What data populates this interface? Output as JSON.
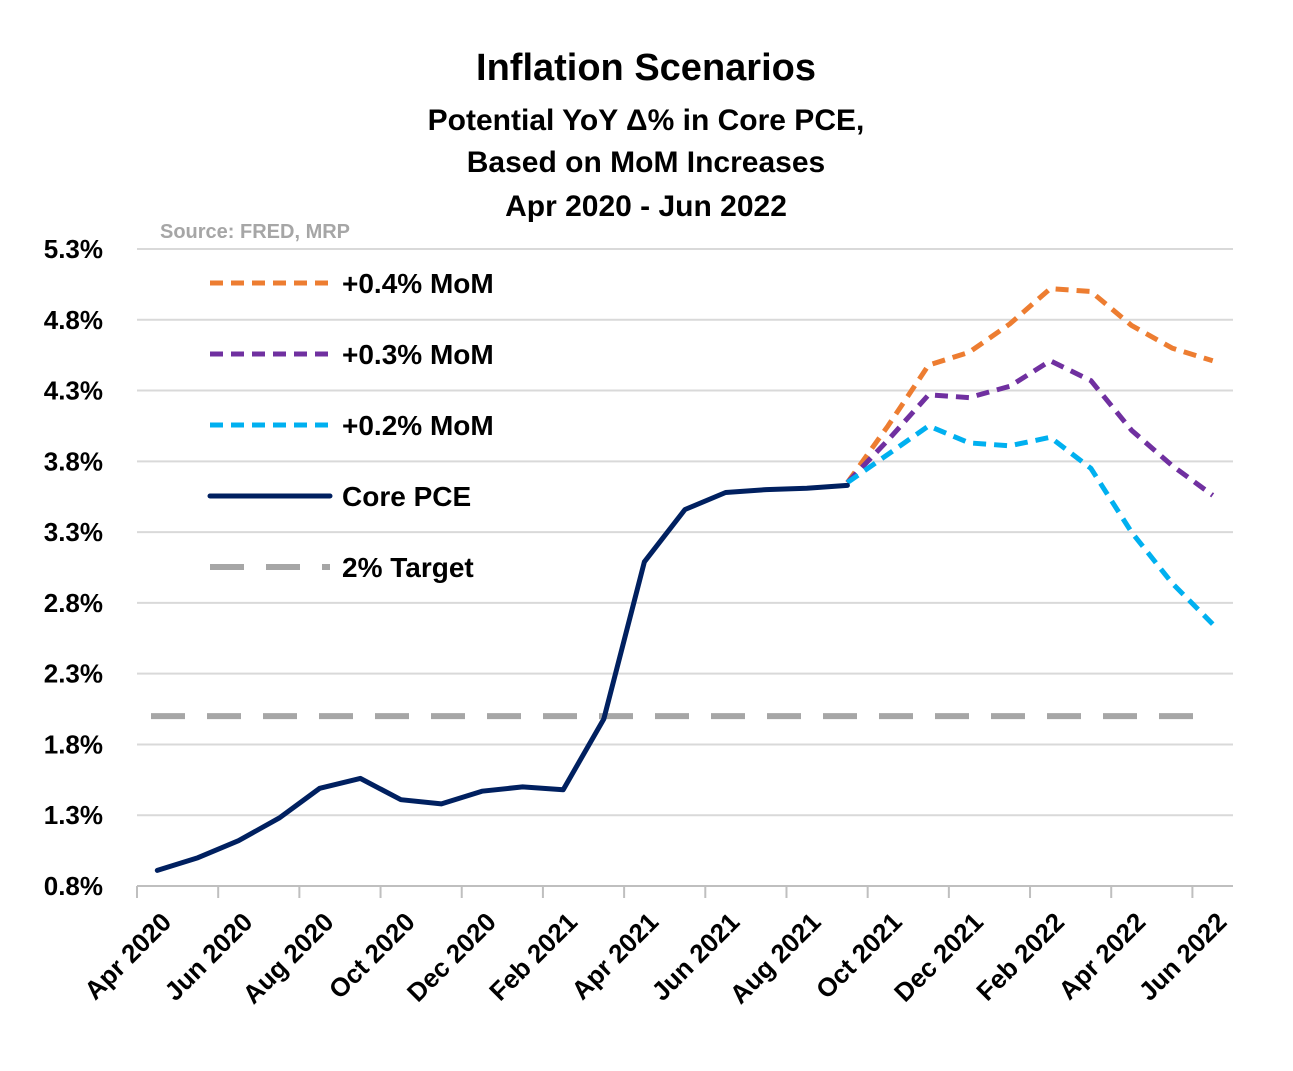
{
  "chart_data": {
    "type": "line",
    "title": "Inflation Scenarios",
    "subtitle_lines": [
      "Potential YoY Δ% in Core PCE,",
      "Based on MoM Increases",
      "Apr 2020 - Jun 2022"
    ],
    "source": "Source: FRED, MRP",
    "y_ticks": [
      "5.3%",
      "4.8%",
      "4.3%",
      "3.8%",
      "3.3%",
      "2.8%",
      "2.3%",
      "1.8%",
      "1.3%",
      "0.8%"
    ],
    "y_tick_values": [
      5.3,
      4.8,
      4.3,
      3.8,
      3.3,
      2.8,
      2.3,
      1.8,
      1.3,
      0.8
    ],
    "ylim": [
      0.8,
      5.3
    ],
    "grid": true,
    "legend_position": "top-left",
    "x_tick_labels": [
      "Apr 2020",
      "Jun 2020",
      "Aug 2020",
      "Oct 2020",
      "Dec 2020",
      "Feb 2021",
      "Apr 2021",
      "Jun 2021",
      "Aug 2021",
      "Oct 2021",
      "Dec 2021",
      "Feb 2022",
      "Apr 2022",
      "Jun 2022"
    ],
    "categories": [
      "Apr 2020",
      "May 2020",
      "Jun 2020",
      "Jul 2020",
      "Aug 2020",
      "Sep 2020",
      "Oct 2020",
      "Nov 2020",
      "Dec 2020",
      "Jan 2021",
      "Feb 2021",
      "Mar 2021",
      "Apr 2021",
      "May 2021",
      "Jun 2021",
      "Jul 2021",
      "Aug 2021",
      "Sep 2021",
      "Oct 2021",
      "Nov 2021",
      "Dec 2021",
      "Jan 2022",
      "Feb 2022",
      "Mar 2022",
      "Apr 2022",
      "May 2022",
      "Jun 2022"
    ],
    "series": [
      {
        "name": "+0.4% MoM",
        "color": "#ed7d31",
        "style": "dash",
        "values": [
          null,
          null,
          null,
          null,
          null,
          null,
          null,
          null,
          null,
          null,
          null,
          null,
          null,
          null,
          null,
          null,
          null,
          3.65,
          4.05,
          4.48,
          4.57,
          4.77,
          5.02,
          5.0,
          4.76,
          4.6,
          4.51
        ]
      },
      {
        "name": "+0.3% MoM",
        "color": "#7030a0",
        "style": "dash",
        "values": [
          null,
          null,
          null,
          null,
          null,
          null,
          null,
          null,
          null,
          null,
          null,
          null,
          null,
          null,
          null,
          null,
          null,
          3.65,
          3.95,
          4.27,
          4.25,
          4.33,
          4.51,
          4.37,
          4.02,
          3.77,
          3.56
        ]
      },
      {
        "name": "+0.2% MoM",
        "color": "#00b0f0",
        "style": "dash",
        "values": [
          null,
          null,
          null,
          null,
          null,
          null,
          null,
          null,
          null,
          null,
          null,
          null,
          null,
          null,
          null,
          null,
          null,
          3.65,
          3.85,
          4.05,
          3.93,
          3.91,
          3.97,
          3.75,
          3.3,
          2.94,
          2.65
        ]
      },
      {
        "name": "Core PCE",
        "color": "#002060",
        "style": "solid",
        "values": [
          0.91,
          1.0,
          1.12,
          1.28,
          1.49,
          1.56,
          1.41,
          1.38,
          1.47,
          1.5,
          1.48,
          1.98,
          3.09,
          3.46,
          3.58,
          3.6,
          3.61,
          3.63,
          null,
          null,
          null,
          null,
          null,
          null,
          null,
          null,
          null
        ]
      },
      {
        "name": "2% Target",
        "color": "#a6a6a6",
        "style": "longdash",
        "values": [
          2.0,
          2.0,
          2.0,
          2.0,
          2.0,
          2.0,
          2.0,
          2.0,
          2.0,
          2.0,
          2.0,
          2.0,
          2.0,
          2.0,
          2.0,
          2.0,
          2.0,
          2.0,
          2.0,
          2.0,
          2.0,
          2.0,
          2.0,
          2.0,
          2.0,
          2.0,
          2.0
        ]
      }
    ]
  }
}
